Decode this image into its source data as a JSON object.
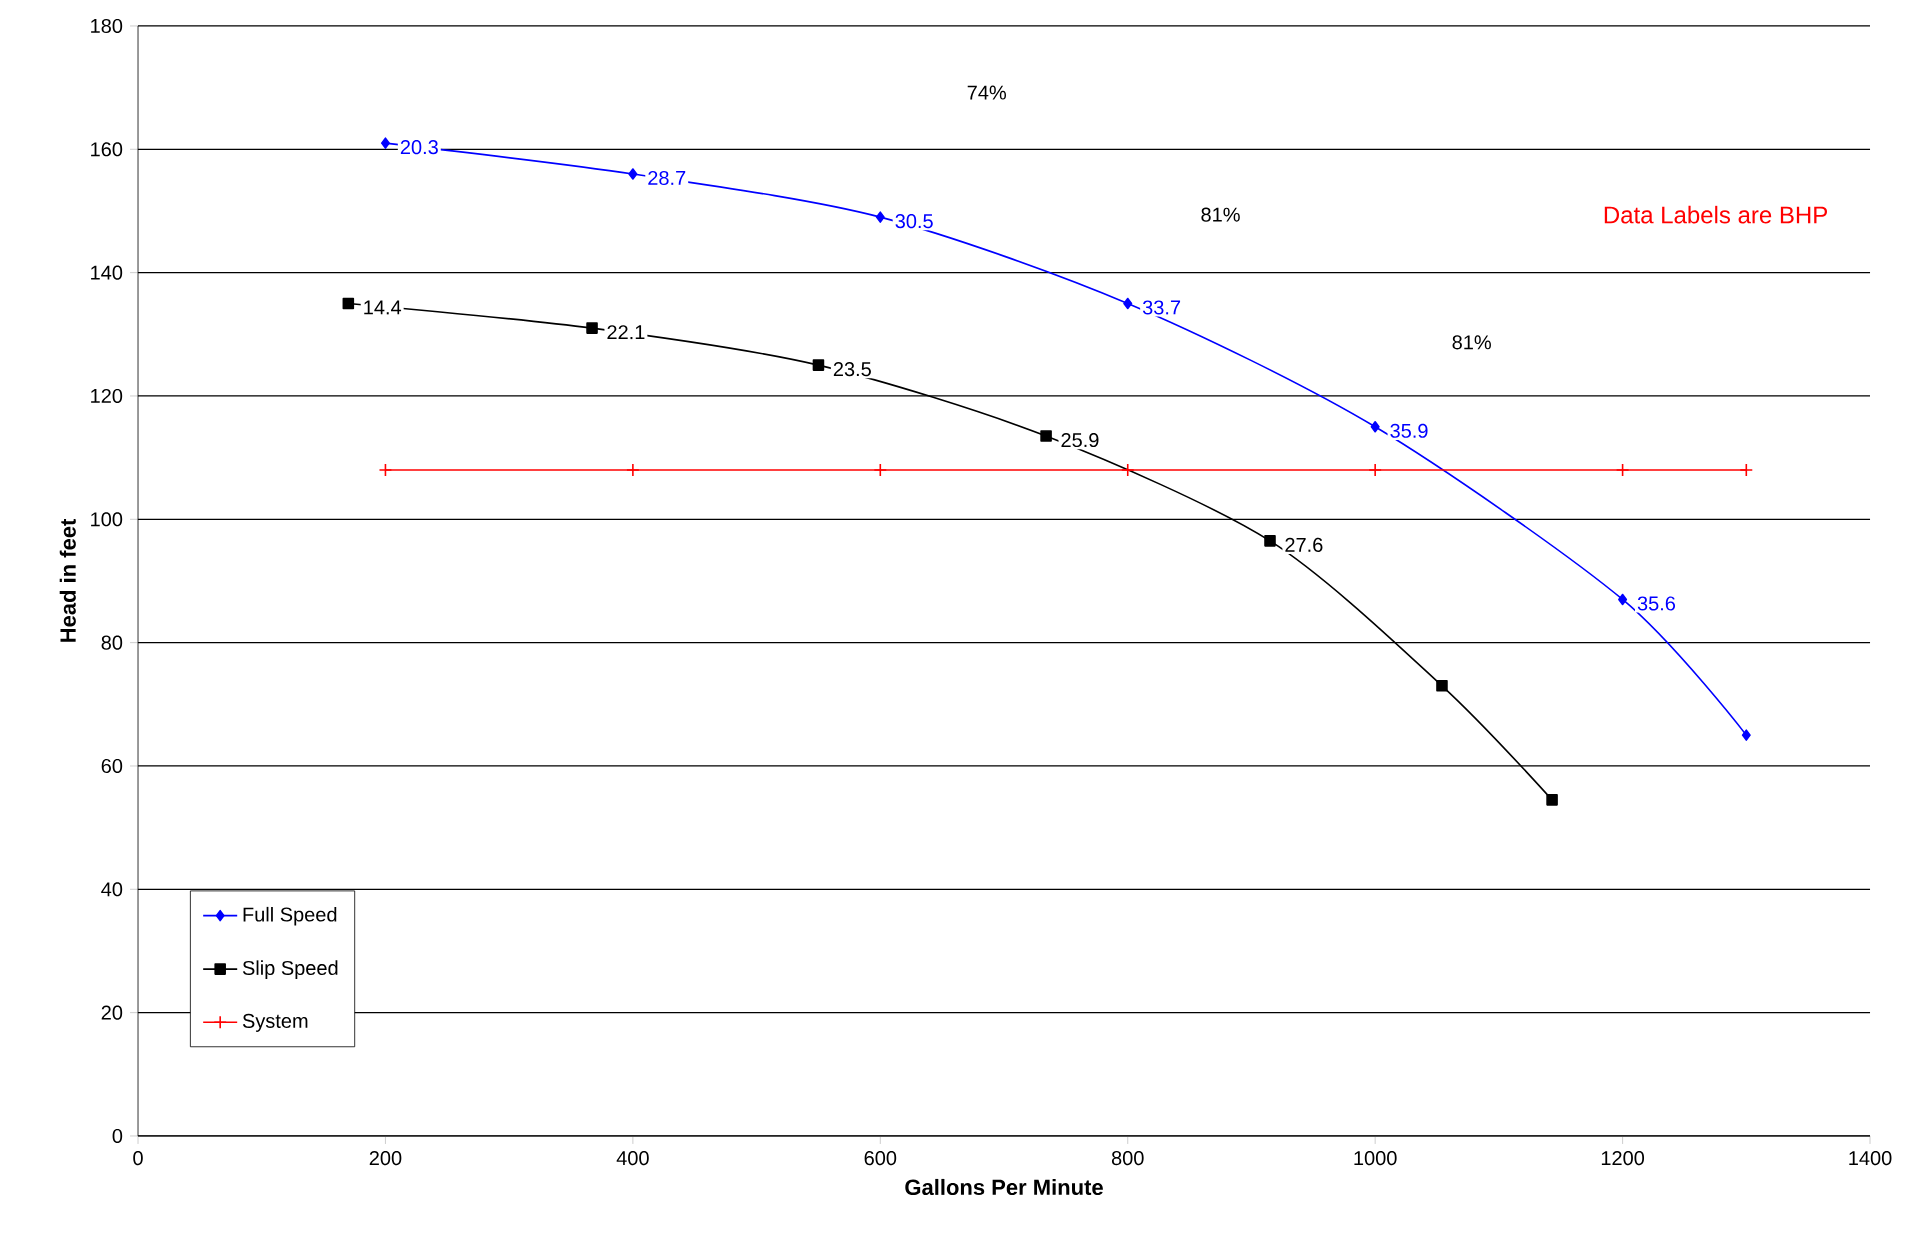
{
  "chart_data": {
    "type": "line",
    "xlabel": "Gallons Per Minute",
    "ylabel": "Head in feet",
    "xlim": [
      0,
      1400
    ],
    "ylim": [
      0,
      180
    ],
    "xticks": [
      0,
      200,
      400,
      600,
      800,
      1000,
      1200,
      1400
    ],
    "yticks": [
      0,
      20,
      40,
      60,
      80,
      100,
      120,
      140,
      160,
      180
    ],
    "grid": "y",
    "legend": "bottom left",
    "series": [
      {
        "name": "Full Speed",
        "color": "#0000ff",
        "marker": "diamond",
        "x": [
          200,
          400,
          600,
          800,
          1000,
          1200,
          1300
        ],
        "values": [
          161,
          156,
          149,
          135,
          115,
          87,
          65
        ]
      },
      {
        "name": "Slip Speed",
        "color": "#000000",
        "marker": "square",
        "x": [
          170,
          367,
          550,
          734,
          915,
          1054,
          1143
        ],
        "values": [
          135,
          131,
          125,
          113.5,
          96.5,
          73,
          54.5
        ]
      },
      {
        "name": "System",
        "color": "#ff0000",
        "marker": "cross",
        "x": [
          200,
          400,
          600,
          800,
          1000,
          1200,
          1300
        ],
        "values": [
          108,
          108,
          108,
          108,
          108,
          108,
          108
        ]
      }
    ],
    "annotations": [
      "74%",
      "81%",
      "81%",
      "Data Labels are BHP",
      {
        "text": "20.3",
        "x": 200,
        "y": 161
      },
      {
        "text": "28.7",
        "x": 400,
        "y": 156
      },
      {
        "text": "30.5",
        "x": 600,
        "y": 149
      },
      {
        "text": "33.7",
        "x": 800,
        "y": 135
      },
      {
        "text": "35.9",
        "x": 1000,
        "y": 115
      },
      {
        "text": "35.6",
        "x": 1200,
        "y": 87
      },
      {
        "text": "14.4",
        "x": 170,
        "y": 135
      },
      {
        "text": "22.1",
        "x": 367,
        "y": 131
      },
      {
        "text": "23.5",
        "x": 550,
        "y": 125
      },
      {
        "text": "25.9",
        "x": 734,
        "y": 113.5
      },
      {
        "text": "27.6",
        "x": 915,
        "y": 96.5
      }
    ]
  }
}
